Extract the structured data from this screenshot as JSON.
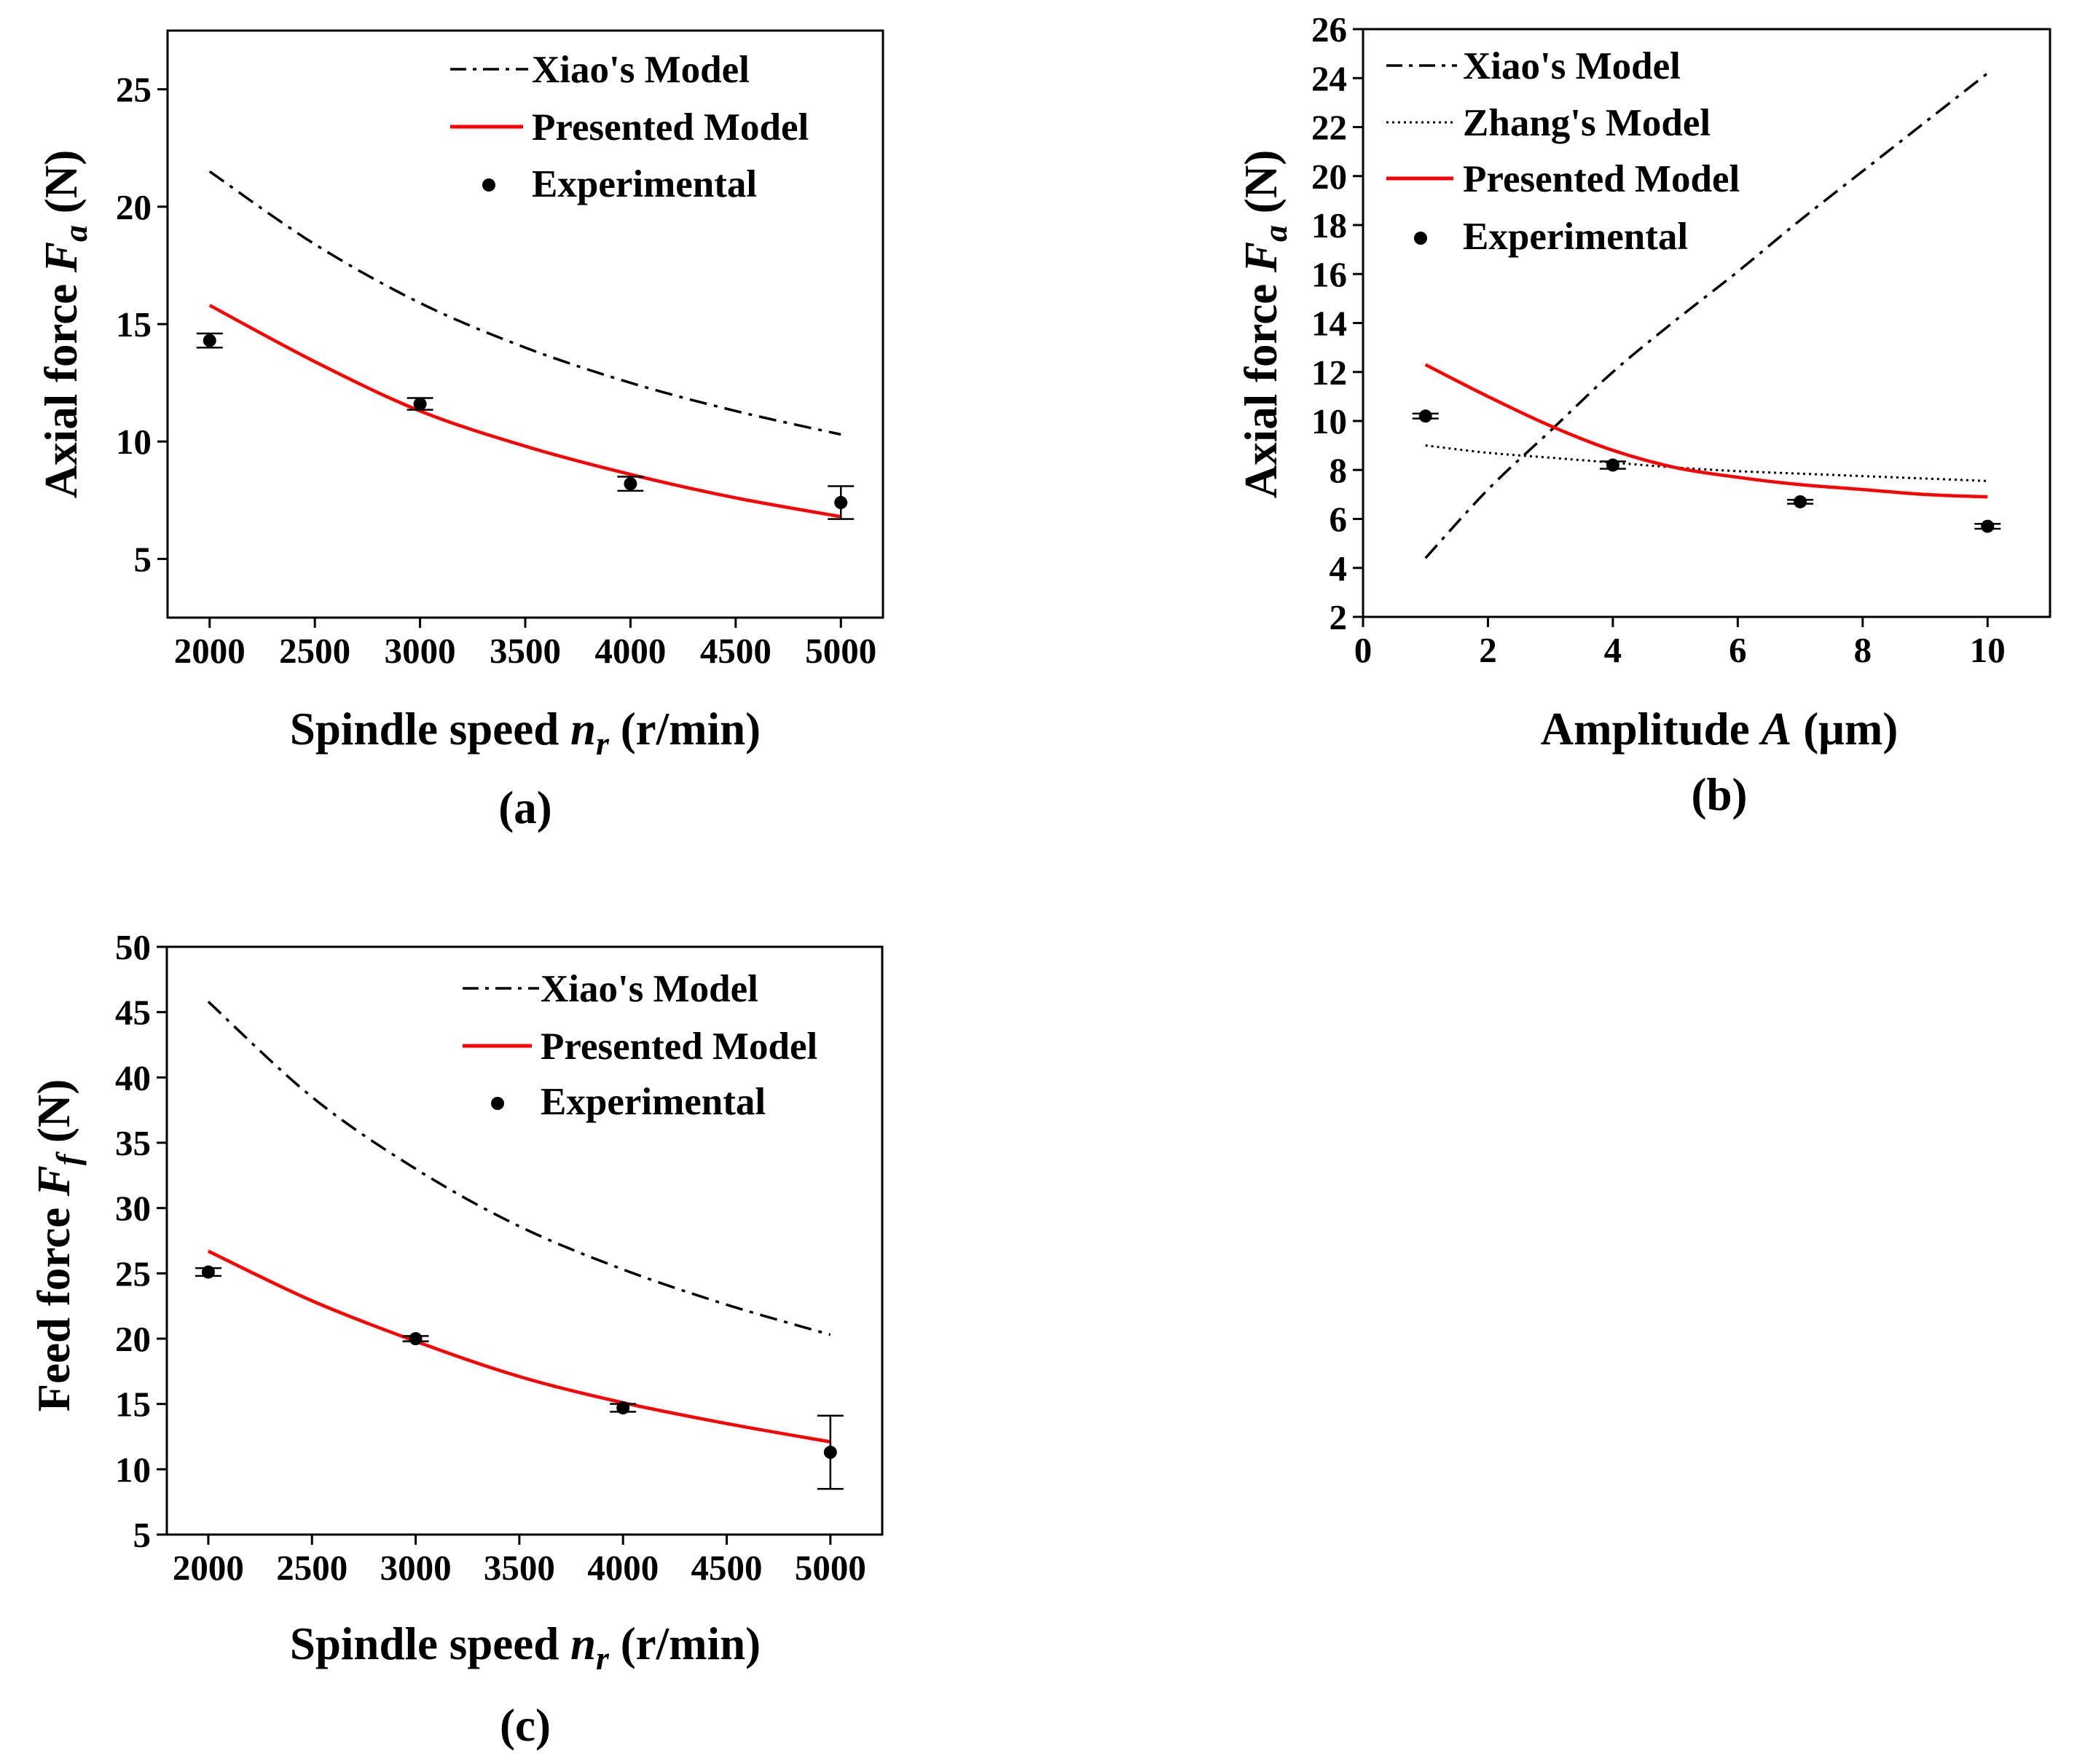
{
  "colors": {
    "presented": "#ff0000",
    "xiao": "#000000",
    "zhang": "#000000",
    "experimental": "#000000"
  },
  "chart_data": [
    {
      "id": "a",
      "type": "line",
      "caption": "(a)",
      "xlabel": {
        "main": "Spindle speed ",
        "var": "n",
        "sub": "r",
        "unit": " (r/min)"
      },
      "ylabel": {
        "main": "Axial force ",
        "var": "F",
        "sub": "a",
        "unit": "  (N)"
      },
      "xlim": [
        1800,
        5200
      ],
      "ylim": [
        2.5,
        27.5
      ],
      "xticks": [
        2000,
        2500,
        3000,
        3500,
        4000,
        4500,
        5000
      ],
      "yticks": [
        5,
        10,
        15,
        20,
        25
      ],
      "series": [
        {
          "name": "Xiao's Model",
          "style": "dashdot",
          "x": [
            2000,
            2500,
            3000,
            3500,
            4000,
            4500,
            5000
          ],
          "y": [
            21.5,
            18.4,
            15.9,
            14.0,
            12.5,
            11.3,
            10.3
          ]
        },
        {
          "name": "Presented Model",
          "style": "solid",
          "x": [
            2000,
            2500,
            3000,
            3500,
            4000,
            4500,
            5000
          ],
          "y": [
            15.8,
            13.4,
            11.3,
            9.8,
            8.6,
            7.6,
            6.8
          ]
        },
        {
          "name": "Experimental",
          "style": "points",
          "x": [
            2000,
            3000,
            4000,
            5000
          ],
          "y": [
            14.3,
            11.6,
            8.2,
            7.4
          ],
          "err": [
            0.3,
            0.25,
            0.3,
            0.7
          ]
        }
      ]
    },
    {
      "id": "b",
      "type": "line",
      "caption": "(b)",
      "xlabel": {
        "main": "Amplitude ",
        "var": "A",
        "sub": "",
        "unit": " (μm)"
      },
      "ylabel": {
        "main": "Axial force ",
        "var": "F",
        "sub": "a",
        "unit": "  (N)"
      },
      "xlim": [
        0,
        11
      ],
      "ylim": [
        2,
        26
      ],
      "xticks": [
        0,
        2,
        4,
        6,
        8,
        10
      ],
      "yticks": [
        2,
        4,
        6,
        8,
        10,
        12,
        14,
        16,
        18,
        20,
        22,
        24,
        26
      ],
      "series": [
        {
          "name": "Xiao's Model",
          "style": "dashdot",
          "x": [
            1,
            2,
            3,
            4,
            5,
            6,
            7,
            8,
            9,
            10
          ],
          "y": [
            4.4,
            7.2,
            9.6,
            12.0,
            14.1,
            16.1,
            18.2,
            20.2,
            22.2,
            24.2
          ]
        },
        {
          "name": "Zhang's Model",
          "style": "dotted",
          "x": [
            1,
            2,
            3,
            4,
            5,
            6,
            7,
            8,
            9,
            10
          ],
          "y": [
            9.0,
            8.7,
            8.5,
            8.3,
            8.1,
            7.95,
            7.85,
            7.75,
            7.65,
            7.55
          ]
        },
        {
          "name": "Presented Model",
          "style": "solid",
          "x": [
            1,
            2,
            3,
            4,
            5,
            6,
            7,
            8,
            9,
            10
          ],
          "y": [
            12.3,
            11.0,
            9.8,
            8.8,
            8.1,
            7.7,
            7.4,
            7.2,
            7.0,
            6.9
          ]
        },
        {
          "name": "Experimental",
          "style": "points",
          "x": [
            1,
            4,
            7,
            10
          ],
          "y": [
            10.2,
            8.2,
            6.7,
            5.7
          ],
          "err": [
            0.1,
            0.15,
            0.08,
            0.1
          ]
        }
      ]
    },
    {
      "id": "c",
      "type": "line",
      "caption": "(c)",
      "xlabel": {
        "main": "Spindle speed ",
        "var": "n",
        "sub": "r",
        "unit": "  (r/min)"
      },
      "ylabel": {
        "main": "Feed  force ",
        "var": "F",
        "sub": "f",
        "unit": "  (N)"
      },
      "xlim": [
        1800,
        5250
      ],
      "ylim": [
        5,
        50
      ],
      "xticks": [
        2000,
        2500,
        3000,
        3500,
        4000,
        4500,
        5000
      ],
      "yticks": [
        5,
        10,
        15,
        20,
        25,
        30,
        35,
        40,
        45,
        50
      ],
      "series": [
        {
          "name": "Xiao's Model",
          "style": "dashdot",
          "x": [
            2000,
            2500,
            3000,
            3500,
            4000,
            4500,
            5000
          ],
          "y": [
            45.8,
            38.5,
            33.0,
            28.6,
            25.3,
            22.6,
            20.3
          ]
        },
        {
          "name": "Presented Model",
          "style": "solid",
          "x": [
            2000,
            2500,
            3000,
            3500,
            4000,
            4500,
            5000
          ],
          "y": [
            26.7,
            22.9,
            19.8,
            17.1,
            15.1,
            13.5,
            12.1
          ]
        },
        {
          "name": "Experimental",
          "style": "points",
          "x": [
            2000,
            3000,
            4000,
            5000
          ],
          "y": [
            25.1,
            20.0,
            14.7,
            11.3
          ],
          "err": [
            0.3,
            0.2,
            0.3,
            2.8
          ]
        }
      ]
    }
  ]
}
